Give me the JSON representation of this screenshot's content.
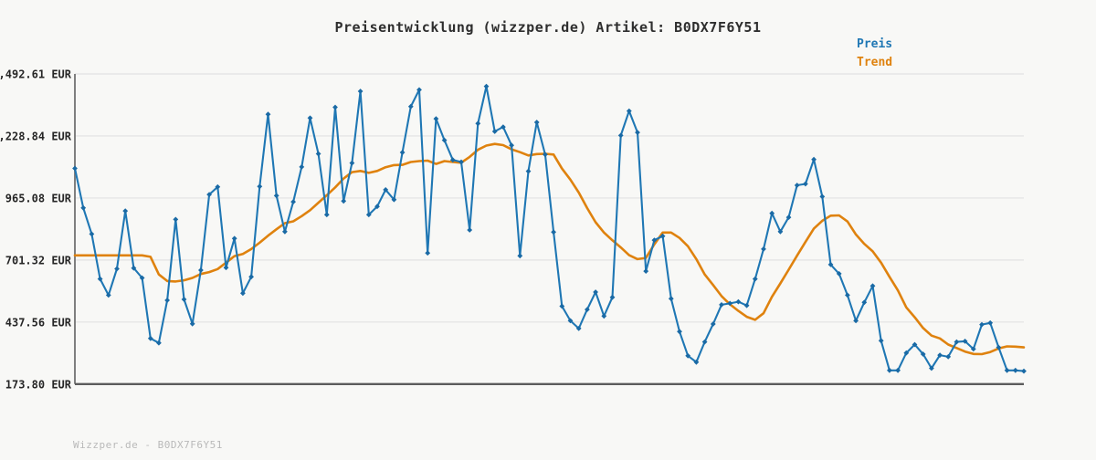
{
  "title": "Preisentwicklung (wizzper.de) Artikel: B0DX7F6Y51",
  "watermark": "Wizzper.de - B0DX7F6Y51",
  "legend": {
    "items": [
      {
        "label": "Preis",
        "color": "#1f77b4"
      },
      {
        "label": "Trend",
        "color": "#df820e"
      }
    ]
  },
  "colors": {
    "background": "#f8f8f6",
    "grid": "#e6e6e6",
    "y_axis_line": "#7f7f7f",
    "x_axis_line": "#5c5c5c",
    "price_line": "#1f77b4",
    "trend_line": "#df820e",
    "title_text": "#2e2e2e",
    "watermark_text": "#b9b9b9"
  },
  "chart_data": {
    "type": "line",
    "title": "Preisentwicklung (wizzper.de) Artikel: B0DX7F6Y51",
    "xlabel": "",
    "ylabel": "",
    "x_axis_labels_visible": false,
    "grid": true,
    "legend_position": "top-right-outside",
    "ylim": [
      173.8,
      1492.61
    ],
    "yticks": [
      {
        "value": 1492.61,
        "label": "1,492.61 EUR"
      },
      {
        "value": 1228.84,
        "label": "1,228.84 EUR"
      },
      {
        "value": 965.08,
        "label": "965.08 EUR"
      },
      {
        "value": 701.32,
        "label": "701.32 EUR"
      },
      {
        "value": 437.56,
        "label": "437.56 EUR"
      },
      {
        "value": 173.8,
        "label": "173.80 EUR"
      }
    ],
    "unit": "EUR",
    "series": [
      {
        "name": "Preis",
        "color": "#1f77b4",
        "marker": "diamond",
        "values": [
          1091,
          923,
          812,
          621,
          552,
          664,
          910,
          667,
          625,
          368,
          349,
          530,
          874,
          534,
          430,
          658,
          980,
          1012,
          669,
          793,
          560,
          630,
          1014,
          1321,
          975,
          822,
          949,
          1097,
          1305,
          1153,
          894,
          1351,
          952,
          1114,
          1419,
          894,
          929,
          1000,
          958,
          1159,
          1354,
          1425,
          731,
          1302,
          1211,
          1127,
          1118,
          829,
          1282,
          1440,
          1248,
          1267,
          1189,
          719,
          1079,
          1287,
          1150,
          820,
          505,
          443,
          410,
          491,
          565,
          463,
          543,
          1231,
          1335,
          1244,
          654,
          786,
          803,
          537,
          397,
          294,
          267,
          353,
          429,
          511,
          517,
          524,
          508,
          621,
          748,
          900,
          822,
          883,
          1019,
          1025,
          1129,
          971,
          682,
          643,
          552,
          443,
          521,
          591,
          358,
          232,
          232,
          306,
          342,
          301,
          241,
          297,
          290,
          353,
          356,
          323,
          427,
          434,
          330,
          232,
          232,
          229
        ]
      },
      {
        "name": "Trend",
        "color": "#df820e",
        "marker": "none",
        "values": [
          721,
          721,
          721,
          721,
          721,
          721,
          721,
          721,
          721,
          715,
          640,
          612,
          610,
          615,
          625,
          642,
          650,
          663,
          690,
          718,
          727,
          748,
          775,
          805,
          832,
          858,
          866,
          888,
          913,
          945,
          977,
          1010,
          1048,
          1075,
          1080,
          1072,
          1080,
          1096,
          1105,
          1106,
          1118,
          1122,
          1124,
          1110,
          1122,
          1118,
          1115,
          1140,
          1170,
          1188,
          1195,
          1190,
          1172,
          1160,
          1146,
          1152,
          1153,
          1150,
          1090,
          1043,
          988,
          922,
          862,
          818,
          785,
          755,
          722,
          705,
          710,
          768,
          818,
          818,
          795,
          760,
          705,
          640,
          595,
          548,
          513,
          485,
          460,
          447,
          475,
          545,
          602,
          660,
          720,
          778,
          835,
          868,
          890,
          891,
          865,
          810,
          770,
          738,
          690,
          630,
          572,
          500,
          458,
          412,
          380,
          368,
          342,
          327,
          312,
          302,
          301,
          310,
          325,
          334,
          333,
          330
        ]
      }
    ]
  }
}
